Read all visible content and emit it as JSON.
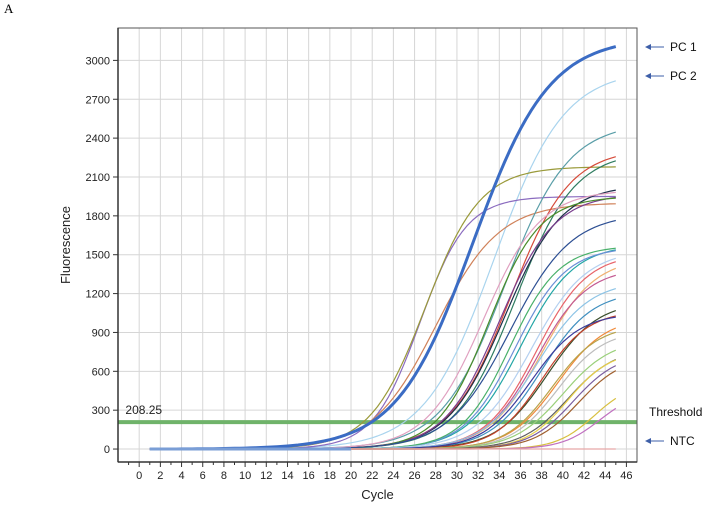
{
  "panel_label": "A",
  "colors": {
    "threshold": "#6fb36a",
    "pc1": "#3b6cc4",
    "grid": "#d6d6d6",
    "arrow": "#3e5fa8"
  },
  "chart_data": {
    "type": "line",
    "title": "",
    "xlabel": "Cycle",
    "ylabel": "Fluorescence",
    "xlim": [
      -2,
      47
    ],
    "ylim": [
      -100,
      3250
    ],
    "xticks": [
      0,
      2,
      4,
      6,
      8,
      10,
      12,
      14,
      16,
      18,
      20,
      22,
      24,
      26,
      28,
      30,
      32,
      34,
      36,
      38,
      40,
      42,
      44,
      46
    ],
    "yticks": [
      0,
      300,
      600,
      900,
      1200,
      1500,
      1800,
      2100,
      2400,
      2700,
      3000
    ],
    "grid": true,
    "threshold": {
      "value": 208.25,
      "label": "208.25"
    },
    "annotations": [
      {
        "text": "PC 1",
        "y": 3085
      },
      {
        "text": "PC 2",
        "y": 2810
      },
      {
        "text": "Threshold",
        "y": 208.25
      },
      {
        "text": "NTC",
        "y": 0
      }
    ],
    "series": [
      {
        "name": "PC 1",
        "color": "#3b6cc4",
        "emphasis": true,
        "midpoint": 31.5,
        "slope": 3.6,
        "plateau": 3180
      },
      {
        "name": "PC 2",
        "color": "#a9d4ee",
        "midpoint": 33.5,
        "slope": 3.3,
        "plateau": 2930
      },
      {
        "color": "#8a6bbf",
        "midpoint": 26.5,
        "slope": 2.2,
        "plateau": 1950
      },
      {
        "color": "#9a9a3a",
        "midpoint": 27.0,
        "slope": 2.6,
        "plateau": 2180
      },
      {
        "color": "#d0825a",
        "midpoint": 28.0,
        "slope": 3.0,
        "plateau": 1900
      },
      {
        "color": "#5a9ea8",
        "midpoint": 34.5,
        "slope": 3.0,
        "plateau": 2520
      },
      {
        "color": "#d64b3a",
        "midpoint": 35.0,
        "slope": 2.8,
        "plateau": 2320
      },
      {
        "color": "#2f7c60",
        "midpoint": 35.5,
        "slope": 2.8,
        "plateau": 2300
      },
      {
        "color": "#1c2f4a",
        "midpoint": 34.5,
        "slope": 2.7,
        "plateau": 2040
      },
      {
        "color": "#e0a0c0",
        "midpoint": 32.5,
        "slope": 2.7,
        "plateau": 2000
      },
      {
        "color": "#7a3e8e",
        "midpoint": 34.0,
        "slope": 2.6,
        "plateau": 1970
      },
      {
        "color": "#4a8c2a",
        "midpoint": 33.0,
        "slope": 2.4,
        "plateau": 1950
      },
      {
        "color": "#2d4f93",
        "midpoint": 35.0,
        "slope": 2.9,
        "plateau": 1820
      },
      {
        "color": "#23a6a6",
        "midpoint": 36.0,
        "slope": 2.5,
        "plateau": 1580
      },
      {
        "color": "#6a8fd6",
        "midpoint": 35.5,
        "slope": 2.4,
        "plateau": 1560
      },
      {
        "color": "#49b06a",
        "midpoint": 35.0,
        "slope": 2.3,
        "plateau": 1570
      },
      {
        "color": "#b4d0f0",
        "midpoint": 37.0,
        "slope": 2.6,
        "plateau": 1540
      },
      {
        "color": "#e8646a",
        "midpoint": 37.5,
        "slope": 2.4,
        "plateau": 1510
      },
      {
        "color": "#f0b070",
        "midpoint": 38.0,
        "slope": 2.5,
        "plateau": 1480
      },
      {
        "color": "#c35a92",
        "midpoint": 37.5,
        "slope": 2.4,
        "plateau": 1400
      },
      {
        "color": "#8dc4e6",
        "midpoint": 37.5,
        "slope": 2.5,
        "plateau": 1300
      },
      {
        "color": "#3f8fbf",
        "midpoint": 38.0,
        "slope": 2.4,
        "plateau": 1220
      },
      {
        "color": "#3a4e2a",
        "midpoint": 38.5,
        "slope": 2.4,
        "plateau": 1140
      },
      {
        "color": "#c2402a",
        "midpoint": 38.0,
        "slope": 2.2,
        "plateau": 1070
      },
      {
        "color": "#3c3c9c",
        "midpoint": 37.0,
        "slope": 2.3,
        "plateau": 1050
      },
      {
        "color": "#f08a3a",
        "midpoint": 39.5,
        "slope": 2.3,
        "plateau": 1020
      },
      {
        "color": "#b8a34a",
        "midpoint": 39.0,
        "slope": 2.2,
        "plateau": 960
      },
      {
        "color": "#bdbdbd",
        "midpoint": 39.5,
        "slope": 2.2,
        "plateau": 920
      },
      {
        "color": "#9ad07a",
        "midpoint": 40.0,
        "slope": 2.3,
        "plateau": 850
      },
      {
        "color": "#606060",
        "midpoint": 40.5,
        "slope": 2.2,
        "plateau": 780
      },
      {
        "color": "#e8d048",
        "midpoint": 40.5,
        "slope": 2.0,
        "plateau": 760
      },
      {
        "color": "#7b5ea0",
        "midpoint": 41.0,
        "slope": 2.1,
        "plateau": 740
      },
      {
        "color": "#a06030",
        "midpoint": 41.5,
        "slope": 2.1,
        "plateau": 720
      },
      {
        "color": "#d8c040",
        "midpoint": 43.0,
        "slope": 1.8,
        "plateau": 520
      },
      {
        "color": "#c070c0",
        "midpoint": 43.5,
        "slope": 1.8,
        "plateau": 450
      },
      {
        "name": "NTC",
        "color": "#e8a8a8",
        "midpoint": 99,
        "slope": 2,
        "plateau": 0
      }
    ]
  }
}
